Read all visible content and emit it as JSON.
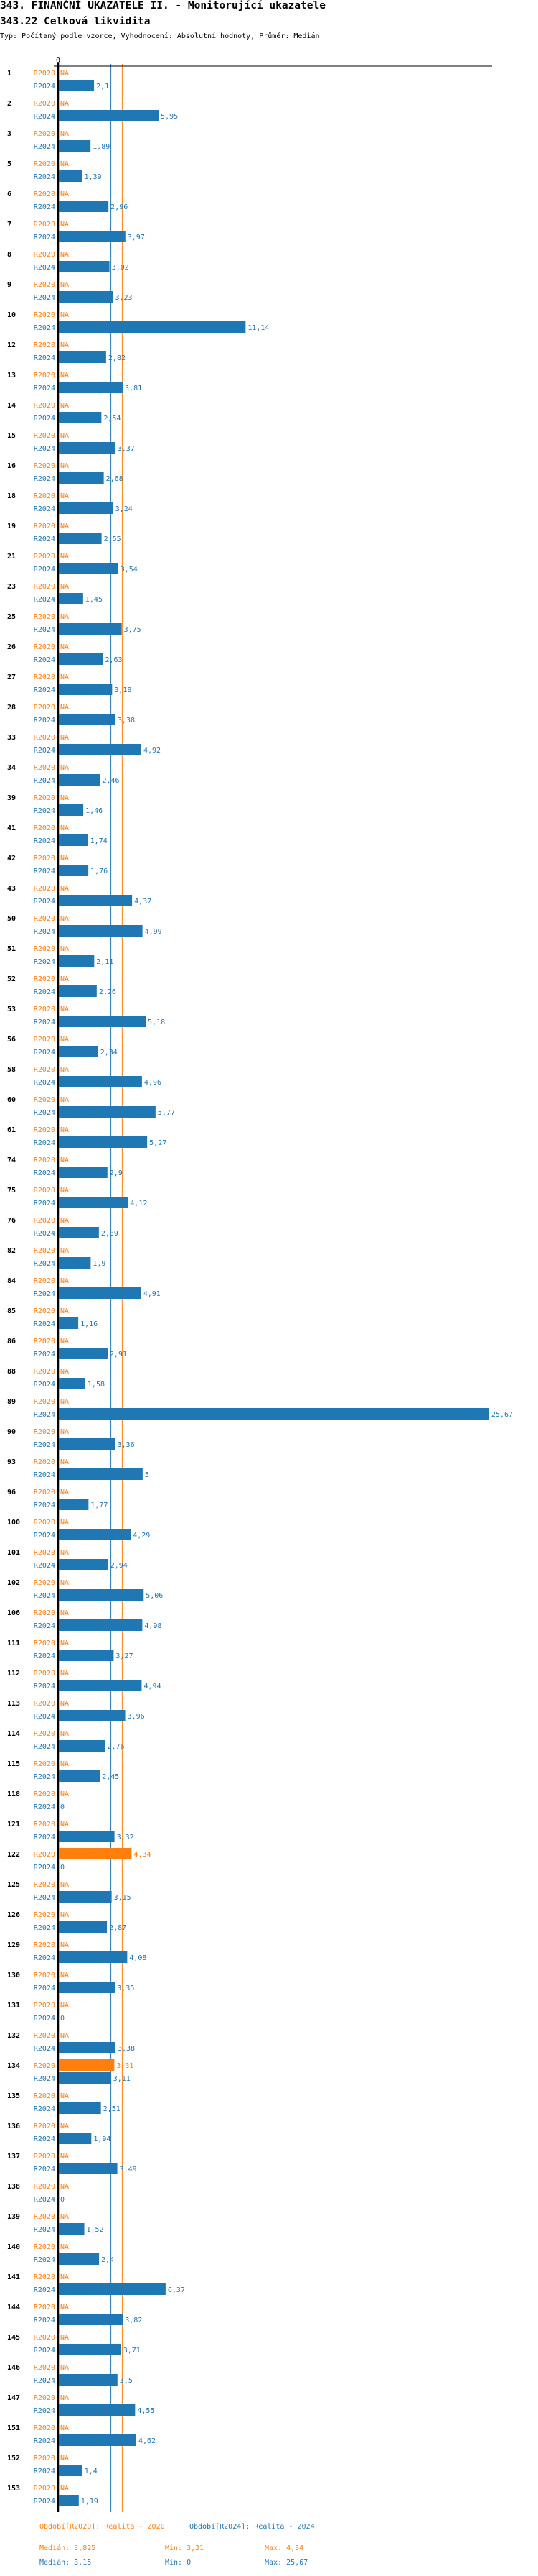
{
  "header": {
    "title": "343. FINANČNÍ UKAZATELE II. - Monitorující ukazatele",
    "subtitle": "343.22 Celková likvidita",
    "type_line": "Typ: Počítaný podle vzorce, Vyhodnocení: Absolutní hodnoty, Průměr: Medián"
  },
  "chart_data": {
    "type": "bar",
    "orientation": "horizontal",
    "title": "343.22 Celková likvidita",
    "axis_zero_label": "0",
    "xlim": [
      0,
      25.67
    ],
    "na_label": "NA",
    "series": [
      {
        "key": "r2020",
        "name": "R2020",
        "color": "#ff7f0e",
        "median": 3.825
      },
      {
        "key": "r2024",
        "name": "R2024",
        "color": "#1f77b4",
        "median": 3.15
      }
    ],
    "groups": [
      {
        "id": "1",
        "r2020": null,
        "r2024": 2.1
      },
      {
        "id": "2",
        "r2020": null,
        "r2024": 5.95
      },
      {
        "id": "3",
        "r2020": null,
        "r2024": 1.89
      },
      {
        "id": "5",
        "r2020": null,
        "r2024": 1.39
      },
      {
        "id": "6",
        "r2020": null,
        "r2024": 2.96
      },
      {
        "id": "7",
        "r2020": null,
        "r2024": 3.97
      },
      {
        "id": "8",
        "r2020": null,
        "r2024": 3.02
      },
      {
        "id": "9",
        "r2020": null,
        "r2024": 3.23
      },
      {
        "id": "10",
        "r2020": null,
        "r2024": 11.14
      },
      {
        "id": "12",
        "r2020": null,
        "r2024": 2.82
      },
      {
        "id": "13",
        "r2020": null,
        "r2024": 3.81
      },
      {
        "id": "14",
        "r2020": null,
        "r2024": 2.54
      },
      {
        "id": "15",
        "r2020": null,
        "r2024": 3.37
      },
      {
        "id": "16",
        "r2020": null,
        "r2024": 2.68
      },
      {
        "id": "18",
        "r2020": null,
        "r2024": 3.24
      },
      {
        "id": "19",
        "r2020": null,
        "r2024": 2.55
      },
      {
        "id": "21",
        "r2020": null,
        "r2024": 3.54
      },
      {
        "id": "23",
        "r2020": null,
        "r2024": 1.45
      },
      {
        "id": "25",
        "r2020": null,
        "r2024": 3.75
      },
      {
        "id": "26",
        "r2020": null,
        "r2024": 2.63
      },
      {
        "id": "27",
        "r2020": null,
        "r2024": 3.18
      },
      {
        "id": "28",
        "r2020": null,
        "r2024": 3.38
      },
      {
        "id": "33",
        "r2020": null,
        "r2024": 4.92
      },
      {
        "id": "34",
        "r2020": null,
        "r2024": 2.46
      },
      {
        "id": "39",
        "r2020": null,
        "r2024": 1.46
      },
      {
        "id": "41",
        "r2020": null,
        "r2024": 1.74
      },
      {
        "id": "42",
        "r2020": null,
        "r2024": 1.76
      },
      {
        "id": "43",
        "r2020": null,
        "r2024": 4.37
      },
      {
        "id": "50",
        "r2020": null,
        "r2024": 4.99
      },
      {
        "id": "51",
        "r2020": null,
        "r2024": 2.11
      },
      {
        "id": "52",
        "r2020": null,
        "r2024": 2.26
      },
      {
        "id": "53",
        "r2020": null,
        "r2024": 5.18
      },
      {
        "id": "56",
        "r2020": null,
        "r2024": 2.34
      },
      {
        "id": "58",
        "r2020": null,
        "r2024": 4.96
      },
      {
        "id": "60",
        "r2020": null,
        "r2024": 5.77
      },
      {
        "id": "61",
        "r2020": null,
        "r2024": 5.27
      },
      {
        "id": "74",
        "r2020": null,
        "r2024": 2.9
      },
      {
        "id": "75",
        "r2020": null,
        "r2024": 4.12
      },
      {
        "id": "76",
        "r2020": null,
        "r2024": 2.39
      },
      {
        "id": "82",
        "r2020": null,
        "r2024": 1.9
      },
      {
        "id": "84",
        "r2020": null,
        "r2024": 4.91
      },
      {
        "id": "85",
        "r2020": null,
        "r2024": 1.16
      },
      {
        "id": "86",
        "r2020": null,
        "r2024": 2.91
      },
      {
        "id": "88",
        "r2020": null,
        "r2024": 1.58
      },
      {
        "id": "89",
        "r2020": null,
        "r2024": 25.67
      },
      {
        "id": "90",
        "r2020": null,
        "r2024": 3.36
      },
      {
        "id": "93",
        "r2020": null,
        "r2024": 5
      },
      {
        "id": "96",
        "r2020": null,
        "r2024": 1.77
      },
      {
        "id": "100",
        "r2020": null,
        "r2024": 4.29
      },
      {
        "id": "101",
        "r2020": null,
        "r2024": 2.94
      },
      {
        "id": "102",
        "r2020": null,
        "r2024": 5.06
      },
      {
        "id": "106",
        "r2020": null,
        "r2024": 4.98
      },
      {
        "id": "111",
        "r2020": null,
        "r2024": 3.27
      },
      {
        "id": "112",
        "r2020": null,
        "r2024": 4.94
      },
      {
        "id": "113",
        "r2020": null,
        "r2024": 3.96
      },
      {
        "id": "114",
        "r2020": null,
        "r2024": 2.76
      },
      {
        "id": "115",
        "r2020": null,
        "r2024": 2.45
      },
      {
        "id": "118",
        "r2020": null,
        "r2024": 0
      },
      {
        "id": "121",
        "r2020": null,
        "r2024": 3.32
      },
      {
        "id": "122",
        "r2020": 4.34,
        "r2024": 0
      },
      {
        "id": "125",
        "r2020": null,
        "r2024": 3.15
      },
      {
        "id": "126",
        "r2020": null,
        "r2024": 2.87
      },
      {
        "id": "129",
        "r2020": null,
        "r2024": 4.08
      },
      {
        "id": "130",
        "r2020": null,
        "r2024": 3.35
      },
      {
        "id": "131",
        "r2020": null,
        "r2024": 0
      },
      {
        "id": "132",
        "r2020": null,
        "r2024": 3.38
      },
      {
        "id": "134",
        "r2020": 3.31,
        "r2024": 3.11
      },
      {
        "id": "135",
        "r2020": null,
        "r2024": 2.51
      },
      {
        "id": "136",
        "r2020": null,
        "r2024": 1.94
      },
      {
        "id": "137",
        "r2020": null,
        "r2024": 3.49
      },
      {
        "id": "138",
        "r2020": null,
        "r2024": 0
      },
      {
        "id": "139",
        "r2020": null,
        "r2024": 1.52
      },
      {
        "id": "140",
        "r2020": null,
        "r2024": 2.4
      },
      {
        "id": "141",
        "r2020": null,
        "r2024": 6.37
      },
      {
        "id": "144",
        "r2020": null,
        "r2024": 3.82
      },
      {
        "id": "145",
        "r2020": null,
        "r2024": 3.71
      },
      {
        "id": "146",
        "r2020": null,
        "r2024": 3.5
      },
      {
        "id": "147",
        "r2020": null,
        "r2024": 4.55
      },
      {
        "id": "151",
        "r2020": null,
        "r2024": 4.62
      },
      {
        "id": "152",
        "r2020": null,
        "r2024": 1.4
      },
      {
        "id": "153",
        "r2020": null,
        "r2024": 1.19
      }
    ]
  },
  "legend": {
    "r2020_period": "Období[R2020]: Realita - 2020",
    "r2024_period": "Období[R2024]: Realita - 2024",
    "r2020_median": "Medián: 3,825",
    "r2020_min": "Min: 3,31",
    "r2020_max": "Max: 4,34",
    "r2024_median": "Medián: 3,15",
    "r2024_min": "Min: 0",
    "r2024_max": "Max: 25,67"
  }
}
